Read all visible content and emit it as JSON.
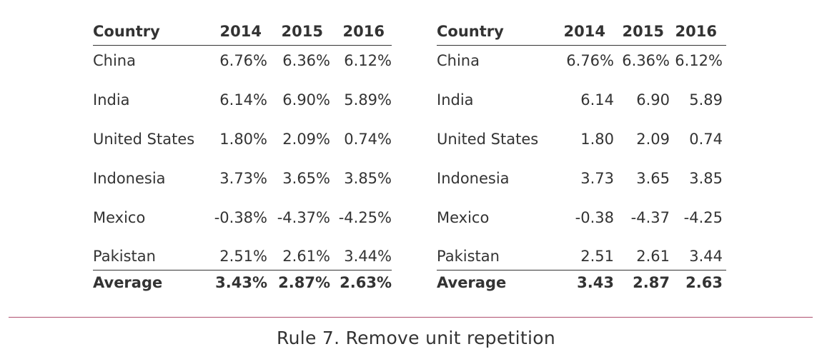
{
  "left_table": {
    "headers": [
      "Country",
      "2014",
      "2015",
      "2016"
    ],
    "rows": [
      [
        "China",
        "6.76%",
        "6.36%",
        "6.12%"
      ],
      [
        "India",
        "6.14%",
        "6.90%",
        "5.89%"
      ],
      [
        "United States",
        "1.80%",
        "2.09%",
        "0.74%"
      ],
      [
        "Indonesia",
        "3.73%",
        "3.65%",
        "3.85%"
      ],
      [
        "Mexico",
        "-0.38%",
        "-4.37%",
        "-4.25%"
      ],
      [
        "Pakistan",
        "2.51%",
        "2.61%",
        "3.44%"
      ]
    ],
    "average": [
      "Average",
      "3.43%",
      "2.87%",
      "2.63%"
    ]
  },
  "right_table": {
    "headers": [
      "Country",
      "2014",
      "2015",
      "2016"
    ],
    "rows": [
      [
        "China",
        "6.76%",
        "6.36%",
        "6.12%"
      ],
      [
        "India",
        "6.14",
        "6.90",
        "5.89"
      ],
      [
        "United States",
        "1.80",
        "2.09",
        "0.74"
      ],
      [
        "Indonesia",
        "3.73",
        "3.65",
        "3.85"
      ],
      [
        "Mexico",
        "-0.38",
        "-4.37",
        "-4.25"
      ],
      [
        "Pakistan",
        "2.51",
        "2.61",
        "3.44"
      ]
    ],
    "average": [
      "Average",
      "3.43",
      "2.87",
      "2.63"
    ]
  },
  "caption": "Rule 7. Remove unit repetition",
  "colors": {
    "text": "#333333",
    "caption_rule": "#b05070"
  }
}
